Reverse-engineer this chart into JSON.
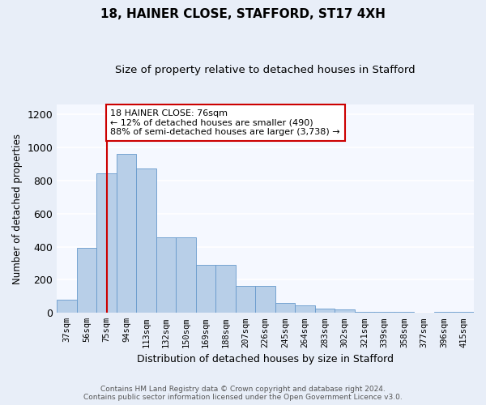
{
  "title1": "18, HAINER CLOSE, STAFFORD, ST17 4XH",
  "title2": "Size of property relative to detached houses in Stafford",
  "xlabel": "Distribution of detached houses by size in Stafford",
  "ylabel": "Number of detached properties",
  "categories": [
    "37sqm",
    "56sqm",
    "75sqm",
    "94sqm",
    "113sqm",
    "132sqm",
    "150sqm",
    "169sqm",
    "188sqm",
    "207sqm",
    "226sqm",
    "245sqm",
    "264sqm",
    "283sqm",
    "302sqm",
    "321sqm",
    "339sqm",
    "358sqm",
    "377sqm",
    "396sqm",
    "415sqm"
  ],
  "values": [
    80,
    395,
    845,
    960,
    875,
    455,
    455,
    290,
    290,
    163,
    163,
    60,
    45,
    27,
    20,
    5,
    5,
    5,
    0,
    5,
    5
  ],
  "bar_color": "#b8cfe8",
  "bar_edge_color": "#6699cc",
  "vline_x": 2,
  "vline_color": "#cc0000",
  "annotation_text": "18 HAINER CLOSE: 76sqm\n← 12% of detached houses are smaller (490)\n88% of semi-detached houses are larger (3,738) →",
  "annotation_box_color": "#ffffff",
  "annotation_box_edge": "#cc0000",
  "ylim": [
    0,
    1260
  ],
  "yticks": [
    0,
    200,
    400,
    600,
    800,
    1000,
    1200
  ],
  "footer": "Contains HM Land Registry data © Crown copyright and database right 2024.\nContains public sector information licensed under the Open Government Licence v3.0.",
  "bg_color": "#e8eef8",
  "plot_bg_color": "#f5f8ff",
  "grid_color": "#ffffff"
}
